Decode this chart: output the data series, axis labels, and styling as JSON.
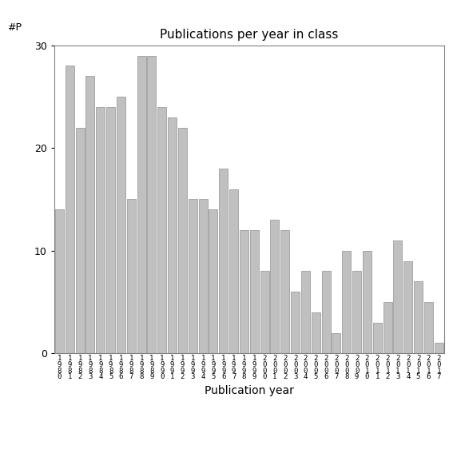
{
  "title": "Publications per year in class",
  "xlabel": "Publication year",
  "ylabel": "#P",
  "bar_color": "#c0c0c0",
  "bar_edgecolor": "#909090",
  "categories": [
    "1\n9\n8\n0",
    "1\n9\n8\n1",
    "1\n9\n8\n2",
    "1\n9\n8\n3",
    "1\n9\n8\n4",
    "1\n9\n8\n5",
    "1\n9\n8\n6",
    "1\n9\n8\n7",
    "1\n9\n8\n8",
    "1\n9\n8\n9",
    "1\n9\n9\n0",
    "1\n9\n9\n1",
    "1\n9\n9\n2",
    "1\n9\n9\n3",
    "1\n9\n9\n4",
    "1\n9\n9\n5",
    "1\n9\n9\n6",
    "1\n9\n9\n7",
    "1\n9\n9\n8",
    "1\n9\n9\n9",
    "2\n0\n0\n0",
    "2\n0\n0\n1",
    "2\n0\n0\n2",
    "2\n0\n0\n3",
    "2\n0\n0\n4",
    "2\n0\n0\n5",
    "2\n0\n0\n6",
    "2\n0\n0\n7",
    "2\n0\n0\n8",
    "2\n0\n0\n9",
    "2\n0\n1\n0",
    "2\n0\n1\n1",
    "2\n0\n1\n2",
    "2\n0\n1\n3",
    "2\n0\n1\n4",
    "2\n0\n1\n5",
    "2\n0\n1\n6",
    "2\n0\n1\n7"
  ],
  "values": [
    14,
    28,
    22,
    27,
    24,
    24,
    25,
    15,
    29,
    29,
    24,
    23,
    22,
    15,
    15,
    14,
    18,
    16,
    12,
    12,
    8,
    13,
    12,
    6,
    8,
    4,
    8,
    2,
    10,
    8,
    10,
    3,
    5,
    11,
    9,
    7,
    5,
    1
  ],
  "ylim": [
    0,
    30
  ],
  "yticks": [
    0,
    10,
    20,
    30
  ],
  "background_color": "#ffffff",
  "title_fontsize": 11,
  "axis_fontsize": 10,
  "tick_fontsize": 9,
  "xtick_fontsize": 6.5
}
